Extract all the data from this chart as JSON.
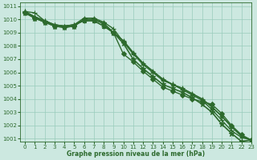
{
  "xlabel": "Graphe pression niveau de la mer (hPa)",
  "xlim": [
    -0.5,
    23
  ],
  "ylim": [
    1000.8,
    1011.3
  ],
  "yticks": [
    1001,
    1002,
    1003,
    1004,
    1005,
    1006,
    1007,
    1008,
    1009,
    1010,
    1011
  ],
  "xticks": [
    0,
    1,
    2,
    3,
    4,
    5,
    6,
    7,
    8,
    9,
    10,
    11,
    12,
    13,
    14,
    15,
    16,
    17,
    18,
    19,
    20,
    21,
    22,
    23
  ],
  "background_color": "#cce8e0",
  "grid_color": "#99ccbb",
  "line_color": "#2d6a2d",
  "series": [
    {
      "y": [
        1010.6,
        1010.5,
        1009.9,
        1009.6,
        1009.5,
        1009.6,
        1010.1,
        1010.1,
        1009.8,
        1009.3,
        1008.3,
        1007.4,
        1006.6,
        1006.0,
        1005.4,
        1005.1,
        1004.7,
        1004.3,
        1003.9,
        1003.2,
        1002.4,
        1001.6,
        1001.1,
        1000.9
      ],
      "marker": "+",
      "ms": 4,
      "lw": 1.0
    },
    {
      "y": [
        1010.6,
        1010.2,
        1009.9,
        1009.6,
        1009.5,
        1009.6,
        1009.9,
        1009.9,
        1009.5,
        1009.0,
        1008.4,
        1007.5,
        1006.7,
        1006.1,
        1005.5,
        1005.1,
        1004.8,
        1004.4,
        1004.0,
        1003.4,
        1002.7,
        1001.9,
        1001.2,
        1000.9
      ],
      "marker": "+",
      "ms": 4,
      "lw": 1.0
    },
    {
      "y": [
        1010.6,
        1010.2,
        1009.9,
        1009.6,
        1009.5,
        1009.6,
        1009.9,
        1009.9,
        1009.5,
        1009.0,
        1008.4,
        1007.5,
        1006.7,
        1006.1,
        1005.5,
        1005.1,
        1004.8,
        1004.4,
        1004.0,
        1003.4,
        1002.7,
        1001.9,
        1001.2,
        1000.9
      ],
      "marker": "^",
      "ms": 3,
      "lw": 1.0
    },
    {
      "y": [
        1010.5,
        1010.1,
        1009.8,
        1009.5,
        1009.4,
        1009.5,
        1010.0,
        1010.0,
        1009.7,
        1009.0,
        1007.4,
        1006.8,
        1006.1,
        1005.5,
        1004.9,
        1004.6,
        1004.3,
        1004.0,
        1003.8,
        1003.6,
        1002.9,
        1002.0,
        1001.3,
        1000.9
      ],
      "marker": "D",
      "ms": 3,
      "lw": 1.0
    },
    {
      "y": [
        1010.5,
        1010.1,
        1009.8,
        1009.5,
        1009.4,
        1009.5,
        1010.0,
        1010.0,
        1009.7,
        1009.0,
        1008.2,
        1007.0,
        1006.3,
        1005.7,
        1005.1,
        1004.8,
        1004.5,
        1004.1,
        1003.6,
        1003.0,
        1002.1,
        1001.4,
        1000.8,
        1000.9
      ],
      "marker": "*",
      "ms": 5,
      "lw": 1.2
    }
  ]
}
